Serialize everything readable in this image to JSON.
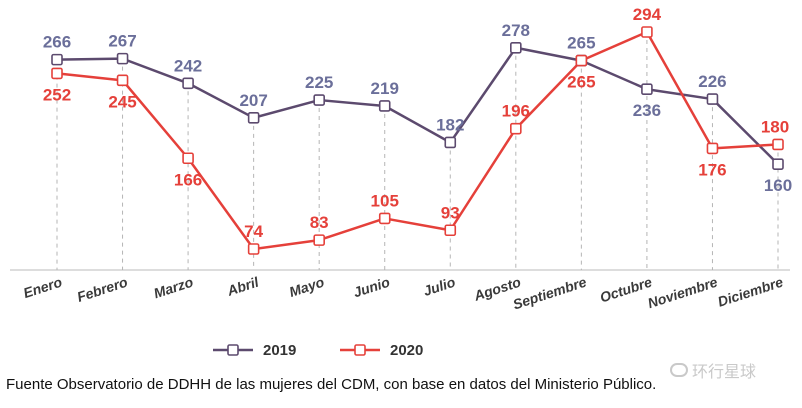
{
  "chart_data": {
    "type": "line",
    "categories": [
      "Enero",
      "Febrero",
      "Marzo",
      "Abril",
      "Mayo",
      "Junio",
      "Julio",
      "Agosto",
      "Septiembre",
      "Octubre",
      "Noviembre",
      "Diciembre"
    ],
    "series": [
      {
        "name": "2019",
        "values": [
          266,
          267,
          242,
          207,
          225,
          219,
          182,
          278,
          265,
          236,
          226,
          160
        ],
        "color": "#5c4a6e",
        "label_color": "#6b6f9a"
      },
      {
        "name": "2020",
        "values": [
          252,
          245,
          166,
          74,
          83,
          105,
          93,
          196,
          265,
          294,
          176,
          180
        ],
        "color": "#e5403a",
        "label_color": "#e5403a"
      }
    ],
    "title": "",
    "xlabel": "",
    "ylabel": "",
    "ylim": [
      0,
      294
    ],
    "grid": false,
    "legend": "bottom-center"
  },
  "source_note": "Fuente Observatorio de DDHH de las mujeres del CDM, con base en datos del Ministerio Público.",
  "watermark": "环行星球"
}
